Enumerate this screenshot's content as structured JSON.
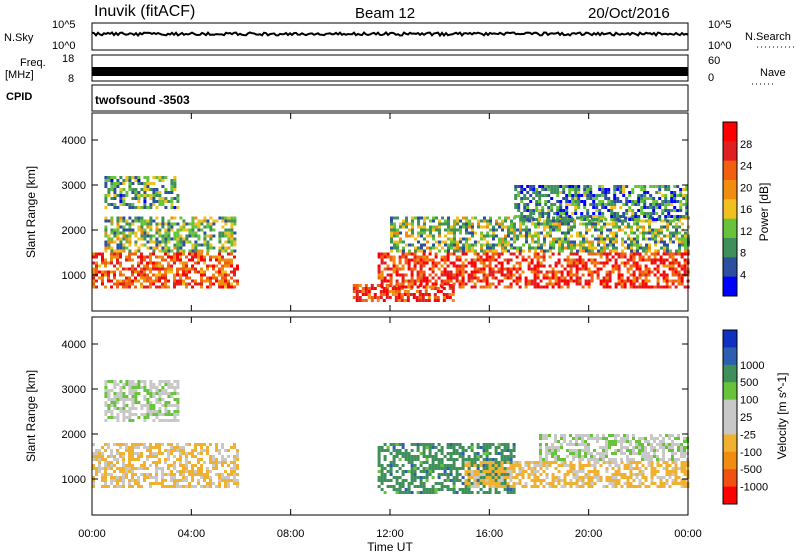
{
  "header": {
    "station": "Inuvik (fitACF)",
    "beam": "Beam 12",
    "date": "20/Oct/2016"
  },
  "top_panels": {
    "nsky_label": "N.Sky",
    "nsky_ticks": [
      "10^5",
      "10^0"
    ],
    "nsearch_label": "N.Search",
    "nsearch_ticks": [
      "10^5",
      "10^0"
    ],
    "freq_label_line1": "Freq.",
    "freq_label_line2": "[MHz]",
    "freq_ticks": [
      "18",
      "8"
    ],
    "nave_label": "Nave",
    "nave_ticks": [
      "60",
      "0"
    ],
    "cpid_label": "CPID",
    "cpid_value": "twofsound -3503"
  },
  "colors": {
    "power": [
      "#0000ff",
      "#2c4f9f",
      "#3f8f5a",
      "#66c33a",
      "#f0c020",
      "#f08c10",
      "#f06010",
      "#e02020",
      "#ff0000"
    ],
    "velocity": [
      "#ff0000",
      "#f05010",
      "#f08c10",
      "#f0b030",
      "#c8c8c8",
      "#c8c8c8",
      "#66c33a",
      "#3f8f5a",
      "#2c5faf",
      "#1030c0"
    ]
  },
  "chart_data": [
    {
      "type": "heatmap",
      "title": "",
      "xlabel": "Time UT",
      "ylabel": "Slant Range [km]",
      "colorbar_label": "Power [dB]",
      "colorbar_ticks": [
        "4",
        "8",
        "12",
        "16",
        "20",
        "24",
        "28"
      ],
      "colorbar_range": [
        0,
        32
      ],
      "x_ticks": [
        "00:00",
        "04:00",
        "08:00",
        "12:00",
        "16:00",
        "20:00",
        "00:00"
      ],
      "xlim_hours": [
        0,
        24
      ],
      "y_ticks": [
        "1000",
        "2000",
        "3000",
        "4000"
      ],
      "ylim": [
        200,
        4600
      ],
      "regions": [
        {
          "t": [
            0,
            5.8
          ],
          "range": [
            700,
            1500
          ],
          "value": 24
        },
        {
          "t": [
            0.5,
            5.8
          ],
          "range": [
            1500,
            2300
          ],
          "value": 12
        },
        {
          "t": [
            0.5,
            3.5
          ],
          "range": [
            2500,
            3200
          ],
          "value": 10
        },
        {
          "t": [
            10.5,
            14.5
          ],
          "range": [
            400,
            800
          ],
          "value": 26
        },
        {
          "t": [
            11.5,
            24
          ],
          "range": [
            700,
            1500
          ],
          "value": 26
        },
        {
          "t": [
            12,
            24
          ],
          "range": [
            1500,
            2300
          ],
          "value": 12
        },
        {
          "t": [
            17,
            24
          ],
          "range": [
            2200,
            3000
          ],
          "value": 8
        }
      ]
    },
    {
      "type": "heatmap",
      "title": "",
      "xlabel": "Time UT",
      "ylabel": "Slant Range [km]",
      "colorbar_label": "Velocity [m s^-1]",
      "colorbar_ticks": [
        "-1000",
        "-500",
        "-100",
        "-25",
        "25",
        "100",
        "500",
        "1000"
      ],
      "x_ticks": [
        "00:00",
        "04:00",
        "08:00",
        "12:00",
        "16:00",
        "20:00",
        "00:00"
      ],
      "xlim_hours": [
        0,
        24
      ],
      "y_ticks": [
        "1000",
        "2000",
        "3000",
        "4000"
      ],
      "ylim": [
        200,
        4600
      ],
      "regions": [
        {
          "t": [
            0,
            5.8
          ],
          "range": [
            800,
            1800
          ],
          "value": -150
        },
        {
          "t": [
            0.5,
            3.5
          ],
          "range": [
            2300,
            3200
          ],
          "value": 0
        },
        {
          "t": [
            11.5,
            17
          ],
          "range": [
            700,
            1800
          ],
          "value": 300
        },
        {
          "t": [
            15,
            24
          ],
          "range": [
            800,
            1400
          ],
          "value": -200
        },
        {
          "t": [
            18,
            24
          ],
          "range": [
            1400,
            2000
          ],
          "value": 0
        }
      ]
    }
  ]
}
